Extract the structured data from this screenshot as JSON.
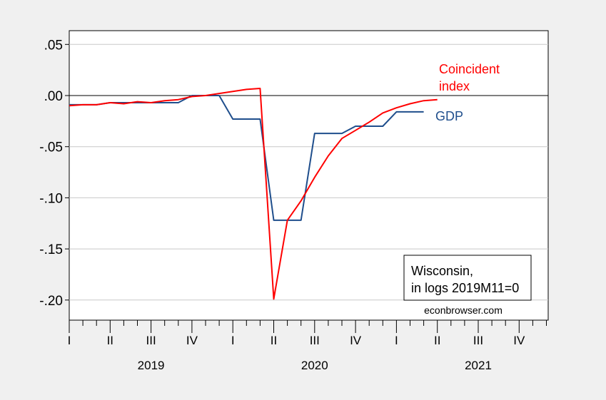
{
  "chart_data": {
    "type": "line",
    "x_unit": "month",
    "x_range": [
      "2019-01",
      "2021-12"
    ],
    "ylim": [
      -0.22,
      0.05
    ],
    "yticks": [
      0.05,
      0.0,
      -0.05,
      -0.1,
      -0.15,
      -0.2
    ],
    "ytick_labels": [
      ".05",
      ".00",
      "-.05",
      "-.10",
      "-.15",
      "-.20"
    ],
    "grid": true,
    "zero_line": true,
    "quarter_labels": [
      {
        "label": "I",
        "month": "2019-01"
      },
      {
        "label": "II",
        "month": "2019-04"
      },
      {
        "label": "III",
        "month": "2019-07"
      },
      {
        "label": "IV",
        "month": "2019-10"
      },
      {
        "label": "I",
        "month": "2020-01"
      },
      {
        "label": "II",
        "month": "2020-04"
      },
      {
        "label": "III",
        "month": "2020-07"
      },
      {
        "label": "IV",
        "month": "2020-10"
      },
      {
        "label": "I",
        "month": "2021-01"
      },
      {
        "label": "II",
        "month": "2021-04"
      },
      {
        "label": "III",
        "month": "2021-07"
      },
      {
        "label": "IV",
        "month": "2021-10"
      }
    ],
    "year_labels": [
      {
        "label": "2019",
        "month": "2019-07"
      },
      {
        "label": "2020",
        "month": "2020-07"
      },
      {
        "label": "2021",
        "month": "2021-07"
      }
    ],
    "series": [
      {
        "name": "Coincident index",
        "label_lines": [
          "Coincident",
          "index"
        ],
        "color": "#ff0000",
        "x": [
          "2019-01",
          "2019-02",
          "2019-03",
          "2019-04",
          "2019-05",
          "2019-06",
          "2019-07",
          "2019-08",
          "2019-09",
          "2019-10",
          "2019-11",
          "2019-12",
          "2020-01",
          "2020-02",
          "2020-03",
          "2020-04",
          "2020-05",
          "2020-06",
          "2020-07",
          "2020-08",
          "2020-09",
          "2020-10",
          "2020-11",
          "2020-12",
          "2021-01",
          "2021-02",
          "2021-03",
          "2021-04"
        ],
        "values": [
          -0.01,
          -0.009,
          -0.009,
          -0.007,
          -0.008,
          -0.006,
          -0.007,
          -0.005,
          -0.004,
          -0.001,
          0.0,
          0.002,
          0.004,
          0.006,
          0.007,
          -0.199,
          -0.122,
          -0.103,
          -0.08,
          -0.059,
          -0.042,
          -0.034,
          -0.026,
          -0.017,
          -0.012,
          -0.008,
          -0.005,
          -0.004
        ]
      },
      {
        "name": "GDP",
        "label_lines": [
          "GDP"
        ],
        "color": "#1f4e8c",
        "x": [
          "2019-01",
          "2019-02",
          "2019-03",
          "2019-04",
          "2019-05",
          "2019-06",
          "2019-07",
          "2019-08",
          "2019-09",
          "2019-10",
          "2019-11",
          "2019-12",
          "2020-01",
          "2020-02",
          "2020-03",
          "2020-04",
          "2020-05",
          "2020-06",
          "2020-07",
          "2020-08",
          "2020-09",
          "2020-10",
          "2020-11",
          "2020-12",
          "2021-01",
          "2021-02",
          "2021-03"
        ],
        "values": [
          -0.009,
          -0.009,
          -0.009,
          -0.007,
          -0.007,
          -0.007,
          -0.007,
          -0.007,
          -0.007,
          0.0,
          0.0,
          0.0,
          -0.023,
          -0.023,
          -0.023,
          -0.122,
          -0.122,
          -0.122,
          -0.037,
          -0.037,
          -0.037,
          -0.03,
          -0.03,
          -0.03,
          -0.016,
          -0.016,
          -0.016
        ]
      }
    ],
    "annotation_lines": [
      "Wisconsin,",
      "in logs 2019M11=0"
    ],
    "source_text": "econbrowser.com"
  }
}
